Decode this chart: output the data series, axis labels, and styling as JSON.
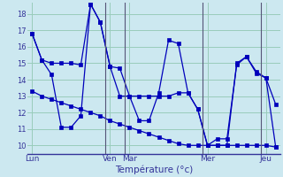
{
  "background_color": "#cce8f0",
  "plot_background": "#cce8f0",
  "grid_color": "#99ccbb",
  "line_color": "#0000bb",
  "xlabel": "Température (°c)",
  "ylim": [
    9.5,
    18.7
  ],
  "yticks": [
    10,
    11,
    12,
    13,
    14,
    15,
    16,
    17,
    18
  ],
  "day_labels": [
    "Lun",
    "Ven",
    "Mar",
    "Mer",
    "Jeu"
  ],
  "day_x": [
    0,
    8,
    10,
    18,
    24
  ],
  "vline_x": [
    7.5,
    9.5,
    17.5,
    23.5
  ],
  "xlim": [
    -0.5,
    25.5
  ],
  "series1": [
    16.8,
    15.2,
    15.0,
    15.0,
    15.0,
    14.9,
    18.6,
    17.5,
    14.8,
    13.0,
    13.0,
    13.0,
    13.0,
    13.0,
    13.0,
    13.2,
    13.2,
    12.2,
    10.0,
    10.4,
    10.4,
    14.9,
    15.4,
    14.4,
    14.1,
    12.5
  ],
  "series2": [
    13.3,
    13.0,
    12.8,
    12.6,
    12.4,
    12.2,
    12.0,
    11.8,
    11.5,
    11.3,
    11.1,
    10.9,
    10.7,
    10.5,
    10.3,
    10.1,
    10.0,
    10.0,
    10.0,
    10.0,
    10.0,
    10.0,
    10.0,
    10.0,
    10.0,
    9.9
  ],
  "series3": [
    16.8,
    15.2,
    14.3,
    11.1,
    11.1,
    11.8,
    18.6,
    17.5,
    14.8,
    14.7,
    13.0,
    11.5,
    11.5,
    13.2,
    16.4,
    16.2,
    13.2,
    12.2,
    10.0,
    10.0,
    10.0,
    15.0,
    15.4,
    14.5,
    14.1,
    9.9
  ]
}
